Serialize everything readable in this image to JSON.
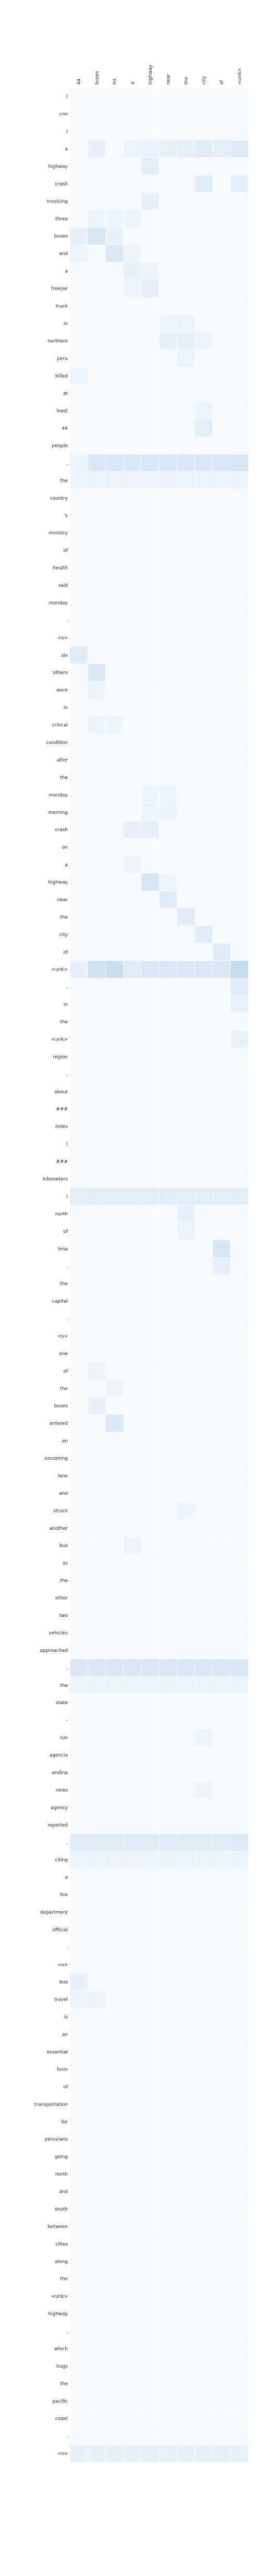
{
  "chart_data": {
    "type": "heatmap",
    "title": "",
    "xlabel": "",
    "ylabel": "",
    "x_labels": [
      "44",
      "buses",
      "hit",
      "a",
      "highway",
      "near",
      "the",
      "city",
      "of",
      "<unk>"
    ],
    "y_labels": [
      "(",
      "cnn",
      ")",
      "a",
      "highway",
      "crash",
      "involving",
      "three",
      "buses",
      "and",
      "a",
      "freezer",
      "truck",
      "in",
      "northern",
      "peru",
      "killed",
      "at",
      "least",
      "44",
      "people",
      ",",
      "the",
      "country",
      "'s",
      "ministry",
      "of",
      "health",
      "said",
      "monday",
      ".",
      "<s>",
      "six",
      "others",
      "were",
      "in",
      "critical",
      "condition",
      "after",
      "the",
      "monday",
      "morning",
      "crash",
      "on",
      "a",
      "highway",
      "near",
      "the",
      "city",
      "of",
      "<unk>",
      ",",
      "in",
      "the",
      "<unk>",
      "region",
      ",",
      "about",
      "###",
      "miles",
      "(",
      "###",
      "kilometers",
      ")",
      "north",
      "of",
      "lima",
      ",",
      "the",
      "capital",
      ".",
      "<s>",
      "one",
      "of",
      "the",
      "buses",
      "entered",
      "an",
      "oncoming",
      "lane",
      "and",
      "struck",
      "another",
      "bus",
      "as",
      "the",
      "other",
      "two",
      "vehicles",
      "approached",
      ",",
      "the",
      "state",
      "-",
      "run",
      "agencia",
      "andina",
      "news",
      "agency",
      "reported",
      ",",
      "citing",
      "a",
      "fire",
      "department",
      "official",
      ".",
      "<s>",
      "bus",
      "travel",
      "is",
      "an",
      "essential",
      "form",
      "of",
      "transportation",
      "for",
      "peruvians",
      "going",
      "north",
      "and",
      "south",
      "between",
      "cities",
      "along",
      "the",
      "<unk>",
      "highway",
      ",",
      "which",
      "hugs",
      "the",
      "pacific",
      "coast",
      ".",
      "<s>"
    ],
    "colormap": [
      "#f7fbff",
      "#c6dbef"
    ],
    "vmin": 0,
    "vmax": 1,
    "grid": false,
    "strong_cells": [
      {
        "row": 3,
        "col": 1,
        "value": 0.15
      },
      {
        "row": 3,
        "col": 3,
        "value": 0.12
      },
      {
        "row": 3,
        "col": 4,
        "value": 0.14
      },
      {
        "row": 3,
        "col": 5,
        "value": 0.16
      },
      {
        "row": 3,
        "col": 6,
        "value": 0.18
      },
      {
        "row": 3,
        "col": 7,
        "value": 0.25
      },
      {
        "row": 3,
        "col": 8,
        "value": 0.22
      },
      {
        "row": 3,
        "col": 9,
        "value": 0.28
      },
      {
        "row": 4,
        "col": 4,
        "value": 0.2
      },
      {
        "row": 5,
        "col": 7,
        "value": 0.25
      },
      {
        "row": 5,
        "col": 9,
        "value": 0.2
      },
      {
        "row": 6,
        "col": 4,
        "value": 0.15
      },
      {
        "row": 7,
        "col": 1,
        "value": 0.1
      },
      {
        "row": 7,
        "col": 2,
        "value": 0.1
      },
      {
        "row": 7,
        "col": 3,
        "value": 0.1
      },
      {
        "row": 8,
        "col": 0,
        "value": 0.15
      },
      {
        "row": 8,
        "col": 1,
        "value": 0.35
      },
      {
        "row": 8,
        "col": 2,
        "value": 0.15
      },
      {
        "row": 9,
        "col": 0,
        "value": 0.12
      },
      {
        "row": 9,
        "col": 2,
        "value": 0.3
      },
      {
        "row": 9,
        "col": 3,
        "value": 0.1
      },
      {
        "row": 10,
        "col": 3,
        "value": 0.15
      },
      {
        "row": 10,
        "col": 4,
        "value": 0.12
      },
      {
        "row": 11,
        "col": 3,
        "value": 0.1
      },
      {
        "row": 11,
        "col": 4,
        "value": 0.15
      },
      {
        "row": 13,
        "col": 5,
        "value": 0.1
      },
      {
        "row": 13,
        "col": 6,
        "value": 0.12
      },
      {
        "row": 14,
        "col": 5,
        "value": 0.15
      },
      {
        "row": 14,
        "col": 6,
        "value": 0.15
      },
      {
        "row": 14,
        "col": 7,
        "value": 0.1
      },
      {
        "row": 15,
        "col": 6,
        "value": 0.12
      },
      {
        "row": 16,
        "col": 0,
        "value": 0.1
      },
      {
        "row": 18,
        "col": 7,
        "value": 0.12
      },
      {
        "row": 19,
        "col": 7,
        "value": 0.18
      },
      {
        "row": 21,
        "col": 0,
        "value": 0.12
      },
      {
        "row": 21,
        "col": 1,
        "value": 0.3
      },
      {
        "row": 21,
        "col": 2,
        "value": 0.32
      },
      {
        "row": 21,
        "col": 3,
        "value": 0.3
      },
      {
        "row": 21,
        "col": 4,
        "value": 0.32
      },
      {
        "row": 21,
        "col": 5,
        "value": 0.3
      },
      {
        "row": 21,
        "col": 6,
        "value": 0.3
      },
      {
        "row": 21,
        "col": 7,
        "value": 0.3
      },
      {
        "row": 21,
        "col": 8,
        "value": 0.3
      },
      {
        "row": 21,
        "col": 9,
        "value": 0.35
      },
      {
        "row": 22,
        "col": 0,
        "value": 0.1
      },
      {
        "row": 22,
        "col": 1,
        "value": 0.12
      },
      {
        "row": 22,
        "col": 2,
        "value": 0.12
      },
      {
        "row": 22,
        "col": 3,
        "value": 0.12
      },
      {
        "row": 22,
        "col": 4,
        "value": 0.12
      },
      {
        "row": 22,
        "col": 5,
        "value": 0.12
      },
      {
        "row": 22,
        "col": 6,
        "value": 0.12
      },
      {
        "row": 22,
        "col": 7,
        "value": 0.12
      },
      {
        "row": 22,
        "col": 8,
        "value": 0.12
      },
      {
        "row": 22,
        "col": 9,
        "value": 0.12
      },
      {
        "row": 32,
        "col": 0,
        "value": 0.25
      },
      {
        "row": 33,
        "col": 1,
        "value": 0.3
      },
      {
        "row": 34,
        "col": 1,
        "value": 0.12
      },
      {
        "row": 36,
        "col": 1,
        "value": 0.1
      },
      {
        "row": 36,
        "col": 2,
        "value": 0.1
      },
      {
        "row": 40,
        "col": 4,
        "value": 0.1
      },
      {
        "row": 40,
        "col": 5,
        "value": 0.1
      },
      {
        "row": 41,
        "col": 4,
        "value": 0.12
      },
      {
        "row": 41,
        "col": 5,
        "value": 0.12
      },
      {
        "row": 42,
        "col": 3,
        "value": 0.15
      },
      {
        "row": 42,
        "col": 4,
        "value": 0.15
      },
      {
        "row": 44,
        "col": 3,
        "value": 0.1
      },
      {
        "row": 45,
        "col": 4,
        "value": 0.35
      },
      {
        "row": 45,
        "col": 5,
        "value": 0.1
      },
      {
        "row": 46,
        "col": 5,
        "value": 0.25
      },
      {
        "row": 47,
        "col": 6,
        "value": 0.25
      },
      {
        "row": 48,
        "col": 7,
        "value": 0.25
      },
      {
        "row": 49,
        "col": 8,
        "value": 0.25
      },
      {
        "row": 50,
        "col": 0,
        "value": 0.15
      },
      {
        "row": 50,
        "col": 1,
        "value": 0.4
      },
      {
        "row": 50,
        "col": 2,
        "value": 0.45
      },
      {
        "row": 50,
        "col": 3,
        "value": 0.25
      },
      {
        "row": 50,
        "col": 4,
        "value": 0.3
      },
      {
        "row": 50,
        "col": 5,
        "value": 0.3
      },
      {
        "row": 50,
        "col": 6,
        "value": 0.3
      },
      {
        "row": 50,
        "col": 7,
        "value": 0.3
      },
      {
        "row": 50,
        "col": 8,
        "value": 0.3
      },
      {
        "row": 50,
        "col": 9,
        "value": 0.5
      },
      {
        "row": 51,
        "col": 9,
        "value": 0.25
      },
      {
        "row": 52,
        "col": 9,
        "value": 0.15
      },
      {
        "row": 54,
        "col": 9,
        "value": 0.15
      },
      {
        "row": 63,
        "col": 0,
        "value": 0.2
      },
      {
        "row": 63,
        "col": 1,
        "value": 0.22
      },
      {
        "row": 63,
        "col": 2,
        "value": 0.22
      },
      {
        "row": 63,
        "col": 3,
        "value": 0.22
      },
      {
        "row": 63,
        "col": 4,
        "value": 0.22
      },
      {
        "row": 63,
        "col": 5,
        "value": 0.22
      },
      {
        "row": 63,
        "col": 6,
        "value": 0.22
      },
      {
        "row": 63,
        "col": 7,
        "value": 0.22
      },
      {
        "row": 63,
        "col": 8,
        "value": 0.22
      },
      {
        "row": 63,
        "col": 9,
        "value": 0.22
      },
      {
        "row": 64,
        "col": 6,
        "value": 0.15
      },
      {
        "row": 65,
        "col": 6,
        "value": 0.12
      },
      {
        "row": 66,
        "col": 8,
        "value": 0.35
      },
      {
        "row": 67,
        "col": 8,
        "value": 0.15
      },
      {
        "row": 73,
        "col": 1,
        "value": 0.12
      },
      {
        "row": 74,
        "col": 2,
        "value": 0.1
      },
      {
        "row": 75,
        "col": 1,
        "value": 0.15
      },
      {
        "row": 76,
        "col": 2,
        "value": 0.3
      },
      {
        "row": 81,
        "col": 6,
        "value": 0.1
      },
      {
        "row": 83,
        "col": 3,
        "value": 0.12
      },
      {
        "row": 90,
        "col": 0,
        "value": 0.3
      },
      {
        "row": 90,
        "col": 1,
        "value": 0.3
      },
      {
        "row": 90,
        "col": 2,
        "value": 0.3
      },
      {
        "row": 90,
        "col": 3,
        "value": 0.3
      },
      {
        "row": 90,
        "col": 4,
        "value": 0.3
      },
      {
        "row": 90,
        "col": 5,
        "value": 0.3
      },
      {
        "row": 90,
        "col": 6,
        "value": 0.3
      },
      {
        "row": 90,
        "col": 7,
        "value": 0.3
      },
      {
        "row": 90,
        "col": 8,
        "value": 0.3
      },
      {
        "row": 90,
        "col": 9,
        "value": 0.32
      },
      {
        "row": 91,
        "col": 0,
        "value": 0.12
      },
      {
        "row": 91,
        "col": 1,
        "value": 0.12
      },
      {
        "row": 91,
        "col": 2,
        "value": 0.12
      },
      {
        "row": 91,
        "col": 3,
        "value": 0.12
      },
      {
        "row": 91,
        "col": 4,
        "value": 0.12
      },
      {
        "row": 91,
        "col": 5,
        "value": 0.12
      },
      {
        "row": 91,
        "col": 6,
        "value": 0.12
      },
      {
        "row": 91,
        "col": 7,
        "value": 0.12
      },
      {
        "row": 91,
        "col": 8,
        "value": 0.12
      },
      {
        "row": 91,
        "col": 9,
        "value": 0.12
      },
      {
        "row": 94,
        "col": 7,
        "value": 0.12
      },
      {
        "row": 97,
        "col": 7,
        "value": 0.1
      },
      {
        "row": 100,
        "col": 0,
        "value": 0.25
      },
      {
        "row": 100,
        "col": 1,
        "value": 0.25
      },
      {
        "row": 100,
        "col": 2,
        "value": 0.25
      },
      {
        "row": 100,
        "col": 3,
        "value": 0.25
      },
      {
        "row": 100,
        "col": 4,
        "value": 0.25
      },
      {
        "row": 100,
        "col": 5,
        "value": 0.25
      },
      {
        "row": 100,
        "col": 6,
        "value": 0.25
      },
      {
        "row": 100,
        "col": 7,
        "value": 0.25
      },
      {
        "row": 100,
        "col": 8,
        "value": 0.25
      },
      {
        "row": 100,
        "col": 9,
        "value": 0.28
      },
      {
        "row": 101,
        "col": 0,
        "value": 0.12
      },
      {
        "row": 101,
        "col": 1,
        "value": 0.12
      },
      {
        "row": 101,
        "col": 2,
        "value": 0.12
      },
      {
        "row": 101,
        "col": 3,
        "value": 0.12
      },
      {
        "row": 101,
        "col": 4,
        "value": 0.12
      },
      {
        "row": 101,
        "col": 5,
        "value": 0.12
      },
      {
        "row": 101,
        "col": 6,
        "value": 0.12
      },
      {
        "row": 101,
        "col": 7,
        "value": 0.12
      },
      {
        "row": 101,
        "col": 8,
        "value": 0.12
      },
      {
        "row": 101,
        "col": 9,
        "value": 0.12
      },
      {
        "row": 108,
        "col": 0,
        "value": 0.15
      },
      {
        "row": 109,
        "col": 0,
        "value": 0.12
      },
      {
        "row": 109,
        "col": 1,
        "value": 0.1
      },
      {
        "row": 135,
        "col": 0,
        "value": 0.15
      },
      {
        "row": 135,
        "col": 1,
        "value": 0.15
      },
      {
        "row": 135,
        "col": 2,
        "value": 0.15
      },
      {
        "row": 135,
        "col": 3,
        "value": 0.15
      },
      {
        "row": 135,
        "col": 4,
        "value": 0.15
      },
      {
        "row": 135,
        "col": 5,
        "value": 0.15
      },
      {
        "row": 135,
        "col": 6,
        "value": 0.15
      },
      {
        "row": 135,
        "col": 7,
        "value": 0.15
      },
      {
        "row": 135,
        "col": 8,
        "value": 0.15
      },
      {
        "row": 135,
        "col": 9,
        "value": 0.15
      },
      {
        "row": 138,
        "col": 4,
        "value": 0.1
      },
      {
        "row": 141,
        "col": 0,
        "value": 0.1
      }
    ]
  }
}
